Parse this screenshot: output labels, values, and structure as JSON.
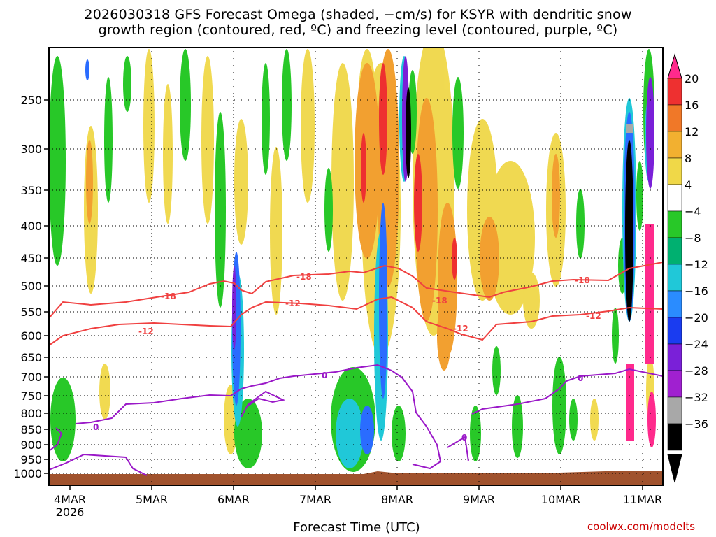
{
  "title_line1": "2026030318 GFS Forecast Omega (shaded, −cm/s) for KSYR with dendritic snow",
  "title_line2": "growth region (contoured, red, ºC) and freezing level (contoured, purple, ºC)",
  "xlabel": "Forecast Time (UTC)",
  "credit": "coolwx.com/modelts",
  "y_ticks": [
    "250",
    "300",
    "350",
    "400",
    "450",
    "500",
    "550",
    "600",
    "650",
    "700",
    "750",
    "800",
    "850",
    "900",
    "950",
    "1000"
  ],
  "x_ticks": [
    "4MAR",
    "5MAR",
    "6MAR",
    "7MAR",
    "8MAR",
    "9MAR",
    "10MAR",
    "11MAR"
  ],
  "x_year": "2026",
  "colorbar_labels": [
    "20",
    "16",
    "12",
    "8",
    "4",
    "−4",
    "−8",
    "−12",
    "−16",
    "−20",
    "−24",
    "−28",
    "−32",
    "−36"
  ],
  "colorbar_colors": [
    "#ff2a8c",
    "#ee3030",
    "#f07828",
    "#f2b030",
    "#f0d848",
    "#ffffff",
    "#28c828",
    "#00b070",
    "#20c8d8",
    "#2a8cff",
    "#1a3cf0",
    "#7a20d8",
    "#a020d0",
    "#a8a8a8",
    "#000000"
  ],
  "contour_labels": {
    "dgz_upper": "-18",
    "dgz_lower": "-12",
    "freezing": "0"
  },
  "contour_colors": {
    "dgz": "#f04040",
    "freezing": "#9a18c8",
    "ground": "#a0522d"
  }
}
